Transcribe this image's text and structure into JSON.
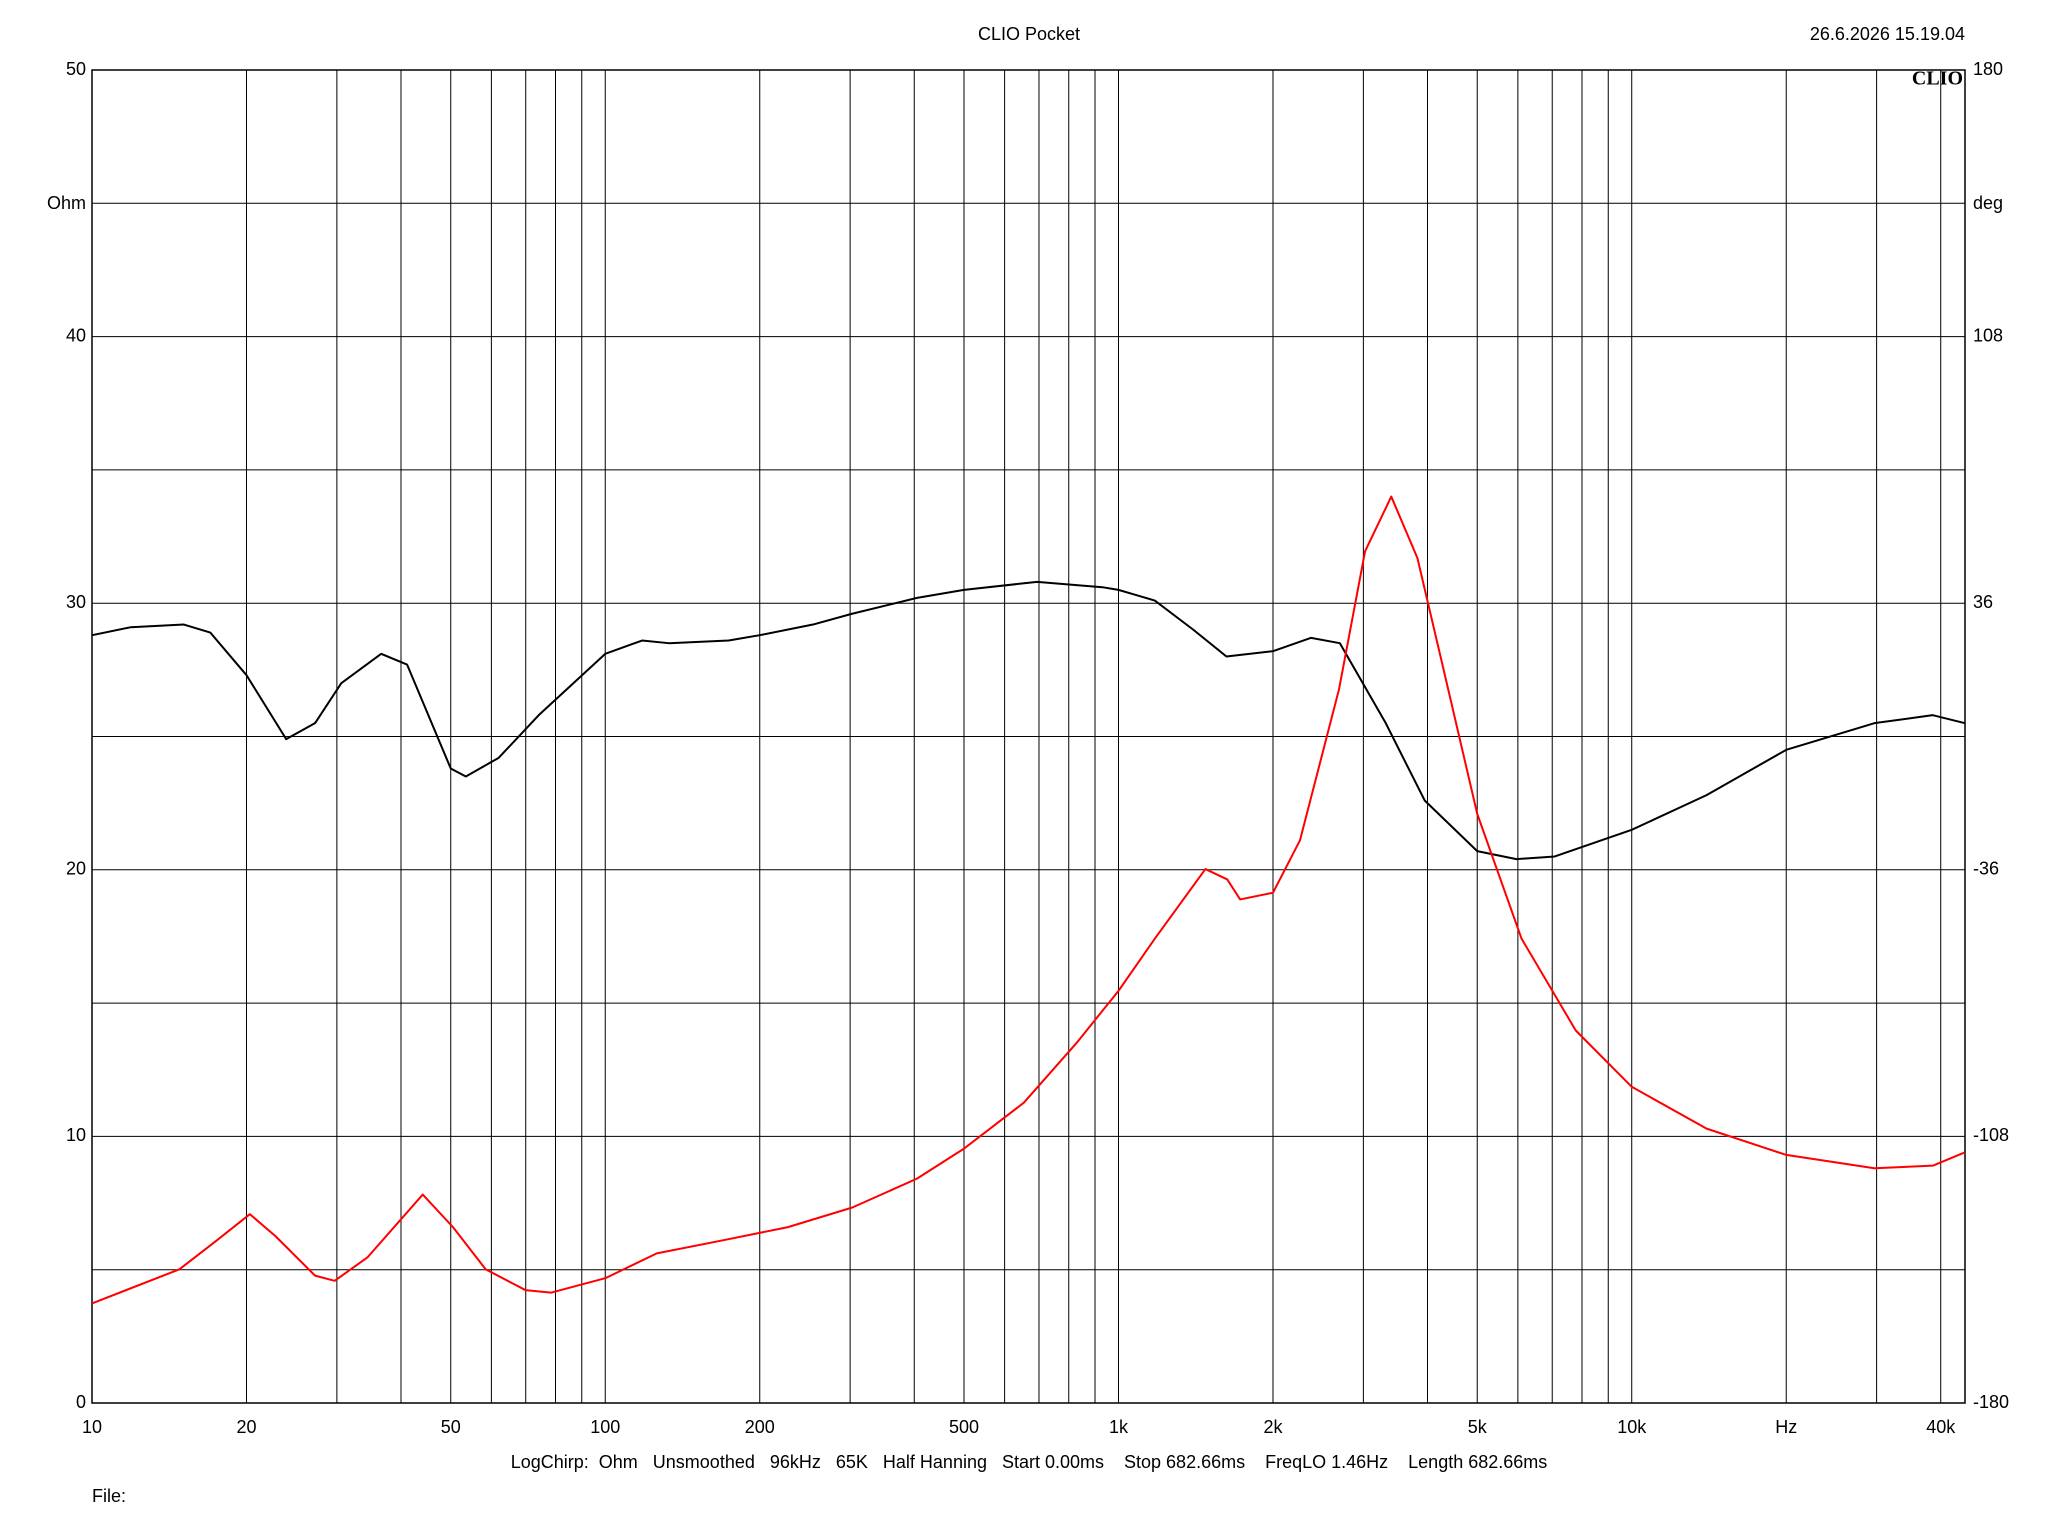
{
  "chart_data": {
    "type": "line",
    "title": "CLIO Pocket",
    "timestamp": "26.6.2026 15.19.04",
    "logo": "CLIO",
    "y_unit": "Ohm",
    "y2_unit": "deg",
    "footer": "LogChirp:  Ohm   Unsmoothed   96kHz   65K   Half Hanning   Start 0.00ms    Stop 682.66ms    FreqLO 1.46Hz    Length 682.66ms",
    "file_label": "File:",
    "log_x": true,
    "grid": true,
    "xlim": [
      10,
      44600
    ],
    "xticks": [
      10,
      20,
      50,
      100,
      200,
      500,
      {
        "value": 1000,
        "label": "1k"
      },
      {
        "value": 2000,
        "label": "2k"
      },
      {
        "value": 5000,
        "label": "5k"
      },
      {
        "value": 10000,
        "label": "10k"
      },
      {
        "value": 20000,
        "label": "Hz"
      },
      {
        "value": 40000,
        "label": "40k"
      }
    ],
    "x_minor_ticks": [
      30,
      40,
      60,
      70,
      80,
      90,
      300,
      400,
      600,
      700,
      800,
      900,
      3000,
      4000,
      6000,
      7000,
      8000,
      9000,
      30000
    ],
    "ylim": [
      0,
      50
    ],
    "yticks": [
      0,
      10,
      20,
      30,
      40,
      50
    ],
    "y_minor_ticks": [
      5,
      15,
      25,
      35,
      45
    ],
    "y2lim": [
      -180,
      180
    ],
    "y2ticks": [
      -180,
      -108,
      -36,
      36,
      108,
      180
    ],
    "series": [
      {
        "color": "#000000",
        "x": [
          10,
          11.9,
          15.1,
          17,
          20,
          23.9,
          27.2,
          30.6,
          36.6,
          41.1,
          50,
          53.5,
          62,
          74.2,
          100,
          118,
          133,
          174,
          200,
          254,
          302,
          405,
          500,
          694,
          930,
          1000,
          1177,
          1400,
          1623,
          2000,
          2373,
          2700,
          3317,
          3950,
          5000,
          5960,
          7080,
          10000,
          13990,
          20000,
          29700,
          38600,
          44600
        ],
        "values": [
          28.8,
          29.1,
          29.2,
          28.9,
          27.3,
          24.9,
          25.5,
          27.0,
          28.1,
          27.7,
          23.8,
          23.5,
          24.2,
          25.8,
          28.1,
          28.6,
          28.5,
          28.6,
          28.8,
          29.2,
          29.6,
          30.2,
          30.5,
          30.8,
          30.6,
          30.5,
          30.1,
          29.0,
          28.0,
          28.2,
          28.7,
          28.5,
          25.5,
          22.6,
          20.7,
          20.4,
          20.5,
          21.5,
          22.8,
          24.5,
          25.5,
          25.8,
          25.5
        ]
      },
      {
        "color": "#ff0000",
        "axis": "y2",
        "x": [
          10,
          14.8,
          17.5,
          20.3,
          22.8,
          27.2,
          29.7,
          34.4,
          44.1,
          50.5,
          58.5,
          69.9,
          78.4,
          100,
          126,
          169,
          227,
          303,
          405,
          500,
          654,
          827,
          1000,
          1177,
          1477,
          1629,
          1726,
          2000,
          2258,
          2690,
          3023,
          3400,
          3823,
          4301,
          5000,
          6100,
          7780,
          10000,
          13990,
          20000,
          29700,
          38600,
          44600
        ],
        "values": [
          -153.1,
          -143.9,
          -136.1,
          -129,
          -135,
          -145.6,
          -147,
          -140.7,
          -123.7,
          -132.5,
          -143.9,
          -149.5,
          -150.2,
          -146.3,
          -139.6,
          -136.1,
          -132.5,
          -127.2,
          -119.4,
          -111.3,
          -98.9,
          -82.9,
          -68.7,
          -54.6,
          -35.8,
          -38.6,
          -44,
          -42.2,
          -28,
          12.8,
          50,
          64.8,
          48.2,
          18,
          -20.9,
          -54.6,
          -79.4,
          -94.6,
          -105.9,
          -113,
          -116.6,
          -115.9,
          -112.3
        ]
      }
    ]
  }
}
